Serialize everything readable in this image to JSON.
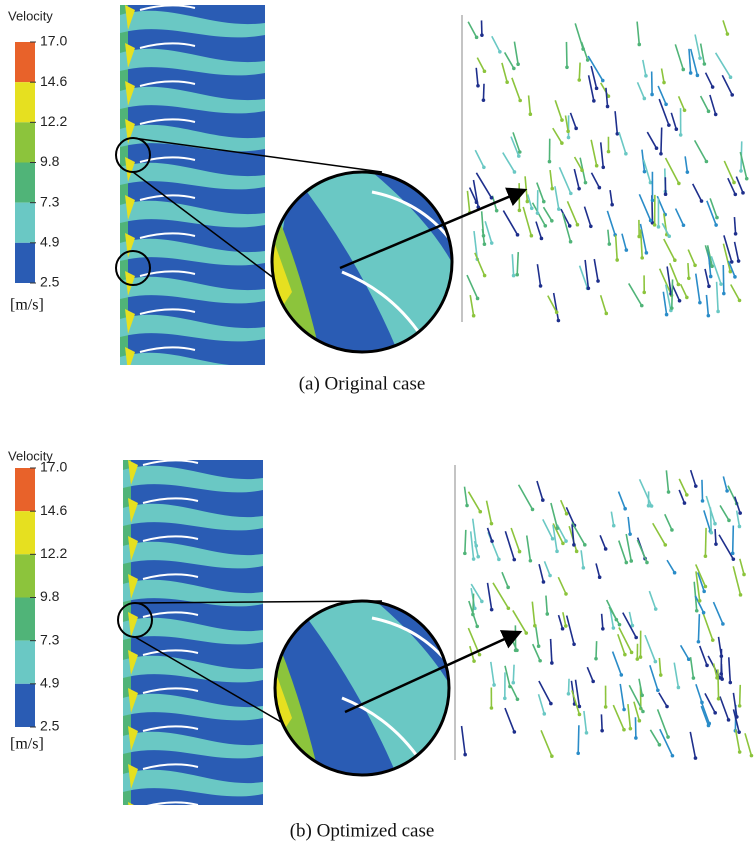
{
  "panels": [
    {
      "legend": {
        "title": "Velocity",
        "ticks": [
          "17.0",
          "14.6",
          "12.2",
          "9.8",
          "7.3",
          "4.9",
          "2.5"
        ],
        "unit": "[m/s]"
      },
      "caption": "(a) Original case"
    },
    {
      "legend": {
        "title": "Velocity",
        "ticks": [
          "17.0",
          "14.6",
          "12.2",
          "9.8",
          "7.3",
          "4.9",
          "2.5"
        ],
        "unit": "[m/s]"
      },
      "caption": "(b) Optimized case"
    }
  ]
}
